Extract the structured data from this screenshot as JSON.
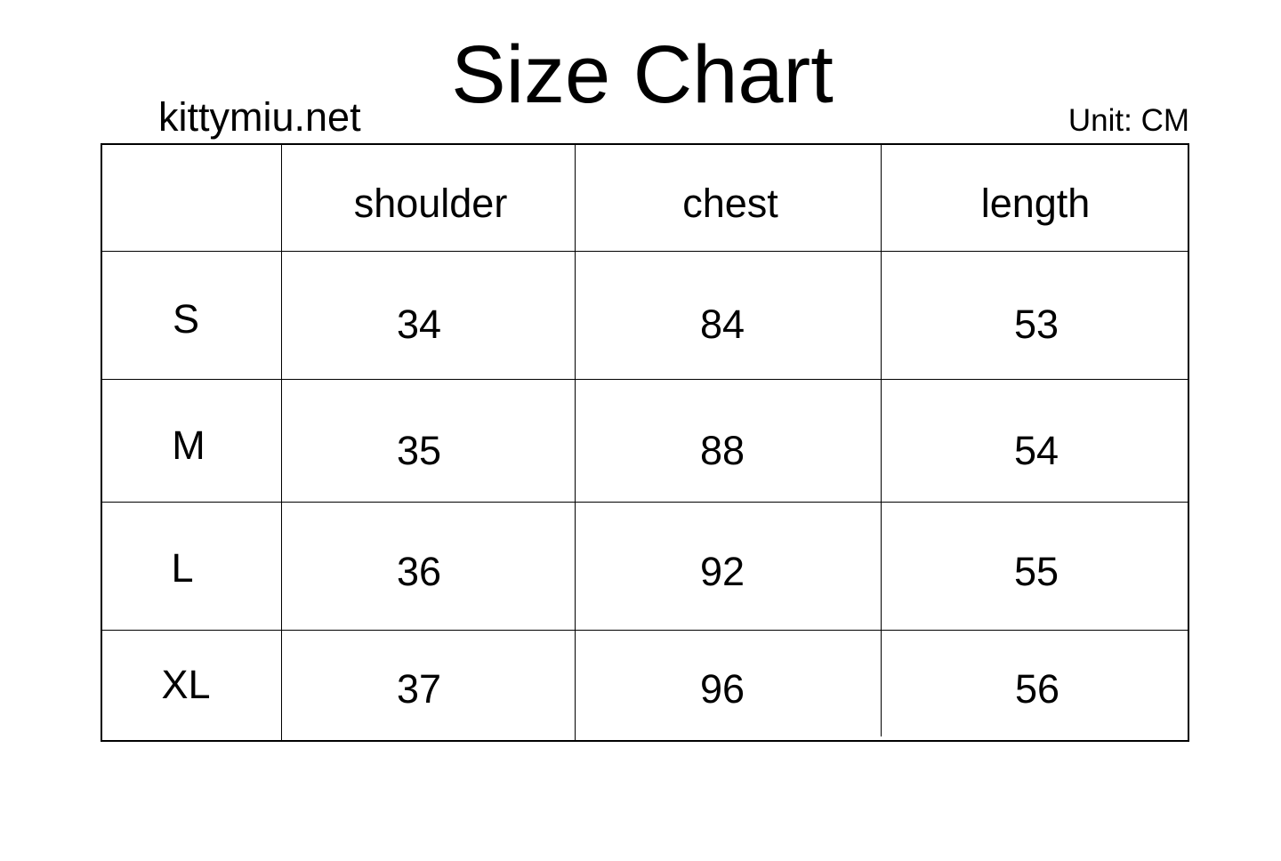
{
  "title": "Size Chart",
  "site": "kittymiu.net",
  "unit": "Unit: CM",
  "table": {
    "headers": [
      "",
      "shoulder",
      "chest",
      "length"
    ],
    "rows": [
      {
        "size": "S",
        "values": [
          "34",
          "84",
          "53"
        ]
      },
      {
        "size": "M",
        "values": [
          "35",
          "88",
          "54"
        ]
      },
      {
        "size": "L",
        "values": [
          "36",
          "92",
          "55"
        ]
      },
      {
        "size": "XL",
        "values": [
          "37",
          "96",
          "56"
        ]
      }
    ]
  }
}
